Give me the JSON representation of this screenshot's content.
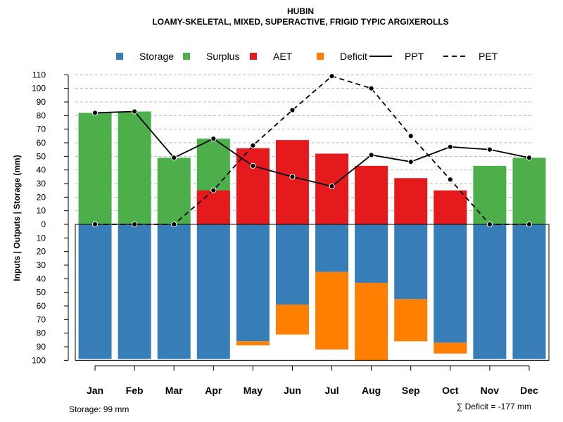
{
  "chart_data": {
    "type": "bar",
    "title": "HUBIN",
    "subtitle": "LOAMY-SKELETAL, MIXED, SUPERACTIVE, FRIGID TYPIC ARGIXEROLLS",
    "ylabel": "Inputs | Outputs | Storage    (mm)",
    "ylim": [
      -100,
      110
    ],
    "y_ticks": [
      110,
      100,
      90,
      80,
      70,
      60,
      50,
      40,
      30,
      20,
      10,
      0,
      -10,
      -20,
      -30,
      -40,
      -50,
      -60,
      -70,
      -80,
      -90,
      -100
    ],
    "y_tick_labels": [
      "110",
      "100",
      "90",
      "80",
      "70",
      "60",
      "50",
      "40",
      "30",
      "20",
      "10",
      "0",
      "10",
      "20",
      "30",
      "40",
      "50",
      "60",
      "70",
      "80",
      "90",
      "100"
    ],
    "categories": [
      "Jan",
      "Feb",
      "Mar",
      "Apr",
      "May",
      "Jun",
      "Jul",
      "Aug",
      "Sep",
      "Oct",
      "Nov",
      "Dec"
    ],
    "legend": [
      {
        "label": "Storage",
        "kind": "box",
        "color": "#377eb8"
      },
      {
        "label": "Surplus",
        "kind": "box",
        "color": "#4daf4a"
      },
      {
        "label": "AET",
        "kind": "box",
        "color": "#e41a1c"
      },
      {
        "label": "Deficit",
        "kind": "box",
        "color": "#ff7f00"
      },
      {
        "label": "PPT",
        "kind": "solid",
        "color": "#000000"
      },
      {
        "label": "PET",
        "kind": "dashed",
        "color": "#000000"
      }
    ],
    "series": [
      {
        "name": "Surplus",
        "color": "#4daf4a",
        "values": [
          82,
          83,
          49,
          63,
          0,
          0,
          0,
          0,
          0,
          0,
          43,
          49
        ]
      },
      {
        "name": "AET",
        "color": "#e41a1c",
        "values": [
          0,
          0,
          0,
          25,
          56,
          62,
          52,
          43,
          34,
          25,
          0,
          0
        ]
      },
      {
        "name": "Storage",
        "color": "#377eb8",
        "values": [
          99,
          99,
          99,
          99,
          86,
          59,
          35,
          43,
          55,
          87,
          99,
          99
        ]
      },
      {
        "name": "Deficit",
        "color": "#ff7f00",
        "values": [
          0,
          0,
          0,
          0,
          3,
          22,
          57,
          57,
          31,
          8,
          0,
          0
        ]
      },
      {
        "name": "PPT",
        "color": "#000000",
        "values": [
          82,
          83,
          49,
          63,
          43,
          35,
          28,
          51,
          46,
          57,
          55,
          49
        ]
      },
      {
        "name": "PET",
        "color": "#000000",
        "values": [
          0,
          0,
          0,
          25,
          58,
          84,
          109,
          100,
          65,
          33,
          0,
          0
        ]
      }
    ],
    "storage_note": "Storage: 99 mm",
    "deficit_note": "∑ Deficit = -177 mm"
  }
}
